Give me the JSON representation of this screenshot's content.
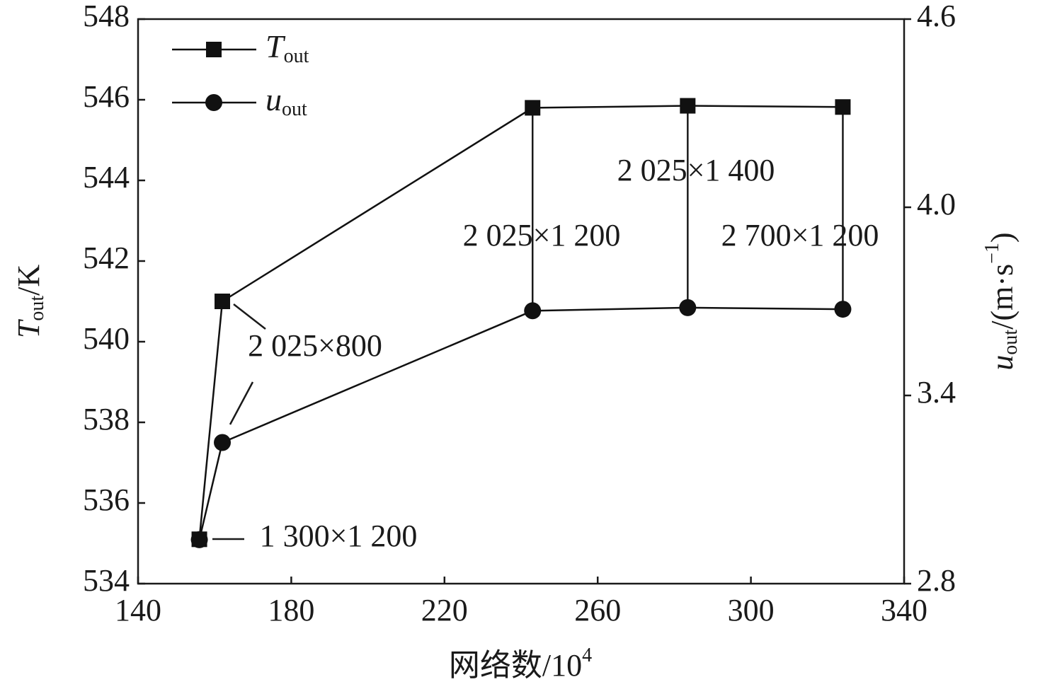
{
  "chart_data": {
    "type": "line",
    "x": [
      156,
      162,
      243,
      283.5,
      324
    ],
    "series": [
      {
        "name": "T",
        "name_sub": "out",
        "marker": "square",
        "color": "#111111",
        "values": [
          535.1,
          541.0,
          545.8,
          545.85,
          545.82
        ]
      },
      {
        "name": "u",
        "name_sub": "out",
        "marker": "circle",
        "color": "#111111",
        "axis": "y2",
        "values": [
          2.94,
          3.25,
          3.67,
          3.68,
          3.675
        ]
      }
    ],
    "xlim": [
      140,
      340
    ],
    "xticks": [
      140,
      180,
      220,
      260,
      300,
      340
    ],
    "ylim": [
      534,
      548
    ],
    "yticks": [
      534,
      536,
      538,
      540,
      542,
      544,
      546,
      548
    ],
    "y2lim": [
      2.8,
      4.6
    ],
    "y2ticks": [
      {
        "value": 2.8,
        "label": "2.8"
      },
      3.4,
      {
        "value": 4.0,
        "label": "4.0"
      },
      4.6
    ],
    "xlabel": {
      "main": "网络数/10",
      "sup": "4"
    },
    "ylabel": {
      "main": "T",
      "sub": "out",
      "rest": "/K"
    },
    "y2label": {
      "main": "u",
      "sub": "out",
      "rest": "/(m·s",
      "sup": "−1",
      "end": ")"
    },
    "legend": "upper left",
    "annotations": [
      "1 300×1 200",
      "2 025×800",
      "2 025×1 200",
      "2 025×1 400",
      "2 700×1 200"
    ]
  }
}
